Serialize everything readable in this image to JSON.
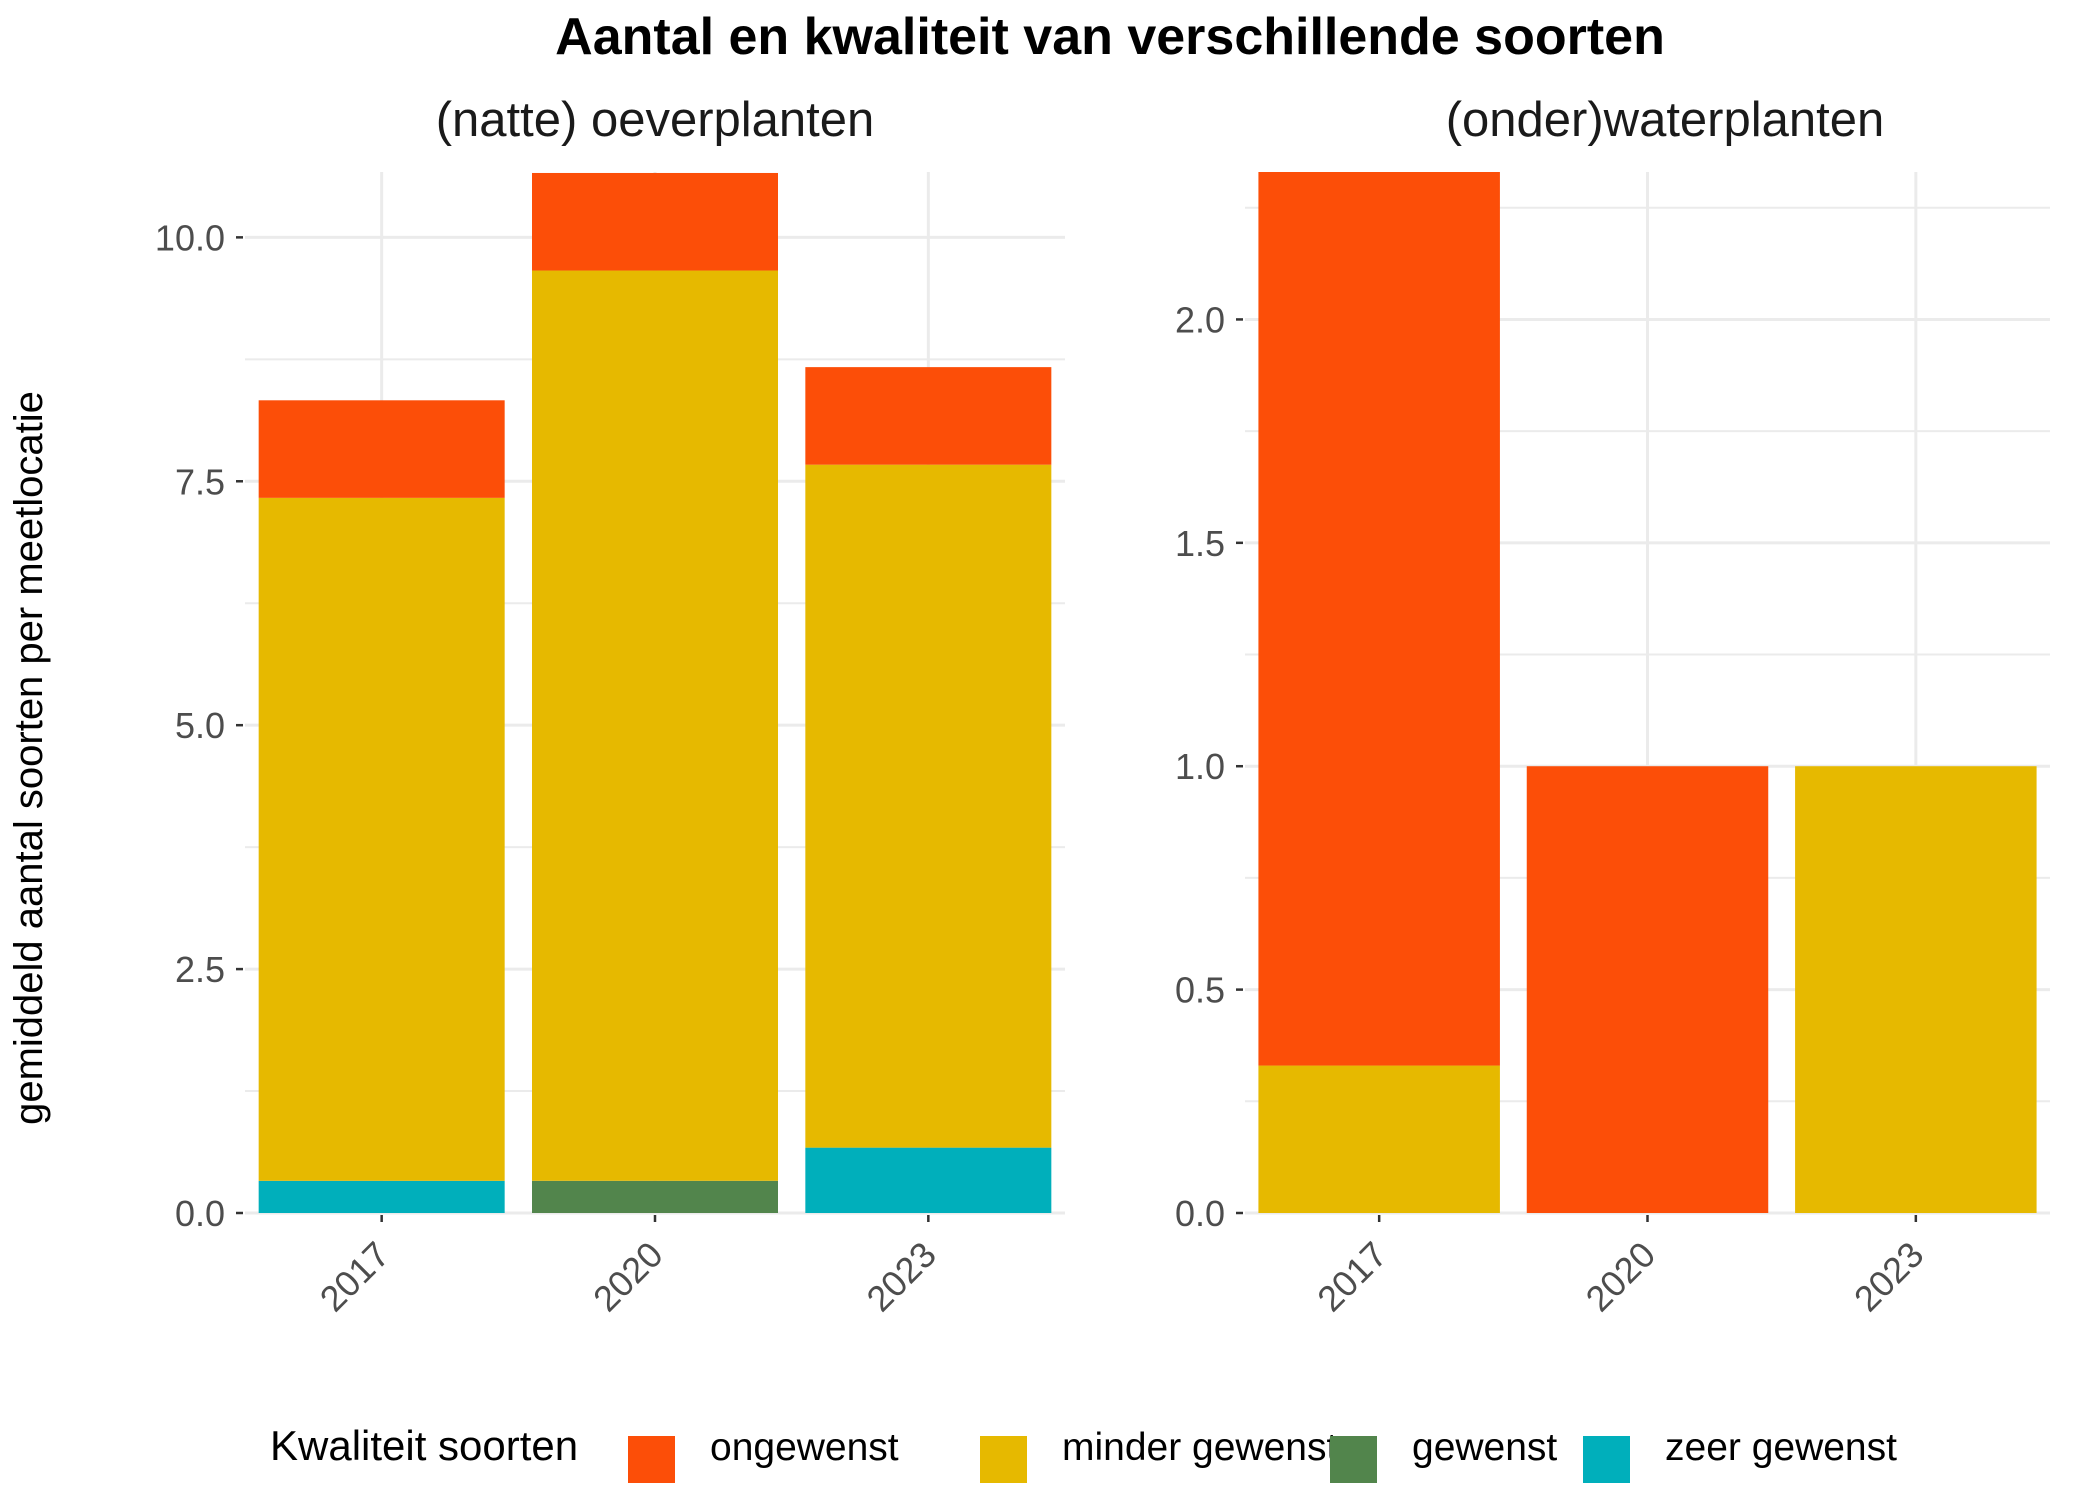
{
  "chart_data": {
    "type": "bar",
    "stacked": true,
    "title": "Aantal en kwaliteit van verschillende soorten",
    "ylabel": "gemiddeld aantal soorten per meetlocatie",
    "xlabel": "",
    "grid": true,
    "legend": {
      "title": "Kwaliteit soorten",
      "position": "bottom",
      "items": [
        {
          "label": "ongewenst",
          "color": "#fc4e08"
        },
        {
          "label": "minder gewenst",
          "color": "#e6b900"
        },
        {
          "label": "gewenst",
          "color": "#52854c"
        },
        {
          "label": "zeer gewenst",
          "color": "#00afbb"
        }
      ]
    },
    "panels": [
      {
        "strip": "(natte) oeverplanten",
        "categories": [
          "2017",
          "2020",
          "2023"
        ],
        "ylim": [
          0,
          10.67
        ],
        "yticks": [
          0,
          2.5,
          5,
          7.5,
          10
        ],
        "ytick_labels": [
          "0.0",
          "2.5",
          "5.0",
          "7.5",
          "10.0"
        ],
        "series": [
          {
            "name": "zeer gewenst",
            "values": [
              0.33,
              0,
              0.67
            ]
          },
          {
            "name": "gewenst",
            "values": [
              0,
              0.33,
              0
            ]
          },
          {
            "name": "minder gewenst",
            "values": [
              7.0,
              9.33,
              7.0
            ]
          },
          {
            "name": "ongewenst",
            "values": [
              1.0,
              1.0,
              1.0
            ]
          }
        ]
      },
      {
        "strip": "(onder)waterplanten",
        "categories": [
          "2017",
          "2020",
          "2023"
        ],
        "ylim": [
          0,
          2.33
        ],
        "yticks": [
          0,
          0.5,
          1,
          1.5,
          2
        ],
        "ytick_labels": [
          "0.0",
          "0.5",
          "1.0",
          "1.5",
          "2.0"
        ],
        "series": [
          {
            "name": "zeer gewenst",
            "values": [
              0,
              0,
              0
            ]
          },
          {
            "name": "gewenst",
            "values": [
              0,
              0,
              0
            ]
          },
          {
            "name": "minder gewenst",
            "values": [
              0.33,
              0,
              1.0
            ]
          },
          {
            "name": "ongewenst",
            "values": [
              2.0,
              1.0,
              0
            ]
          }
        ]
      }
    ]
  }
}
